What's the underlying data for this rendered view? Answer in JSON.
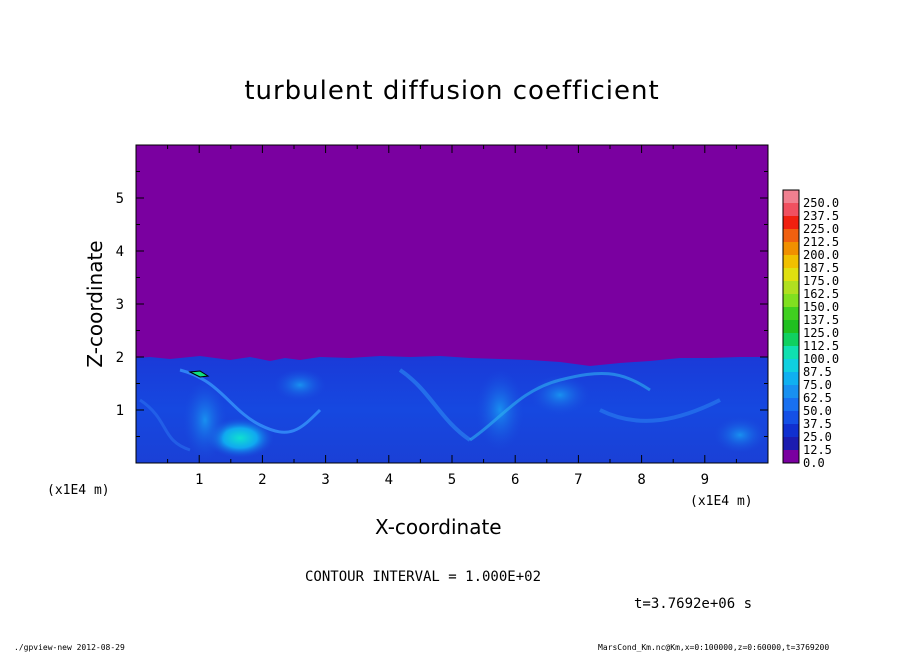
{
  "chart_data": {
    "type": "heatmap",
    "title": "turbulent diffusion coefficient",
    "xlabel": "X-coordinate",
    "ylabel": "Z-coordinate",
    "x_unit": "(x1E4 m)",
    "xlim": [
      0,
      10
    ],
    "ylim": [
      0,
      6
    ],
    "x_ticks": [
      "1",
      "2",
      "3",
      "4",
      "5",
      "6",
      "7",
      "8",
      "9"
    ],
    "y_ticks": [
      "1",
      "2",
      "3",
      "4",
      "5"
    ],
    "colorbar": {
      "labels": [
        "0.0",
        "12.5",
        "25.0",
        "37.5",
        "50.0",
        "62.5",
        "75.0",
        "87.5",
        "100.0",
        "112.5",
        "125.0",
        "137.5",
        "150.0",
        "162.5",
        "175.0",
        "187.5",
        "200.0",
        "212.5",
        "225.0",
        "237.5",
        "250.0"
      ],
      "colors": [
        "#7a00a0",
        "#1c1cb0",
        "#1030d0",
        "#1450e6",
        "#1870f0",
        "#1890f0",
        "#10b0f0",
        "#10d0e0",
        "#10e0b0",
        "#10d060",
        "#20c020",
        "#40d020",
        "#80e020",
        "#b0e020",
        "#e0e010",
        "#f0c000",
        "#f09000",
        "#f06010",
        "#f02010",
        "#f05060",
        "#f08090"
      ]
    },
    "field": {
      "upper_region_value": 0.0,
      "boundary_layer_top": 2.0,
      "typical_value_below_boundary": [
        25,
        75
      ],
      "hotspots": [
        {
          "x": 1.5,
          "z": 0.3,
          "value": 90
        },
        {
          "x": 1.3,
          "z": 1.7,
          "value": 120
        },
        {
          "x": 5.8,
          "z": 0.5,
          "value": 80
        },
        {
          "x": 7.2,
          "z": 1.2,
          "value": 75
        }
      ]
    }
  },
  "contour_interval": "CONTOUR INTERVAL = 1.000E+02",
  "time_label": "t=3.7692e+06 s",
  "footer_left": "./gpview-new  2012-08-29",
  "footer_right": "MarsCond_Km.nc@Km,x=0:100000,z=0:60000,t=3769200"
}
